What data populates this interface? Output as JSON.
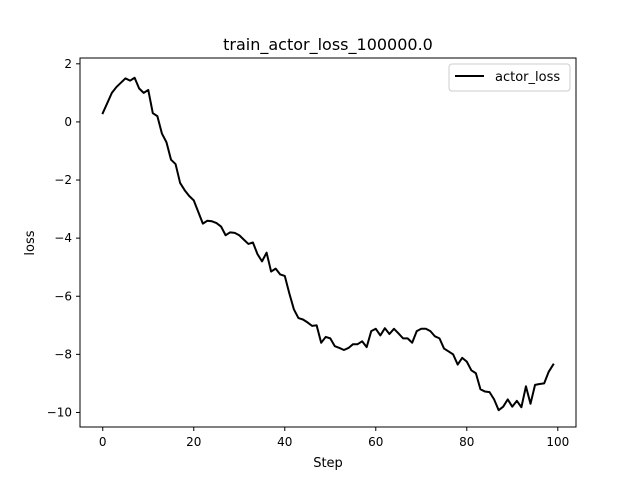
{
  "chart_data": {
    "type": "line",
    "title": "train_actor_loss_100000.0",
    "xlabel": "Step",
    "ylabel": "loss",
    "xlim": [
      -5,
      104
    ],
    "ylim": [
      -10.5,
      2.2
    ],
    "x_ticks": [
      0,
      20,
      40,
      60,
      80,
      100
    ],
    "y_ticks": [
      2,
      0,
      -2,
      -4,
      -6,
      -8,
      -10
    ],
    "grid": false,
    "legend": {
      "position": "top-right"
    },
    "series": [
      {
        "name": "actor_loss",
        "color": "#000000",
        "x": [
          0,
          1,
          2,
          3,
          4,
          5,
          6,
          7,
          8,
          9,
          10,
          11,
          12,
          13,
          14,
          15,
          16,
          17,
          18,
          19,
          20,
          21,
          22,
          23,
          24,
          25,
          26,
          27,
          28,
          29,
          30,
          31,
          32,
          33,
          34,
          35,
          36,
          37,
          38,
          39,
          40,
          41,
          42,
          43,
          44,
          45,
          46,
          47,
          48,
          49,
          50,
          51,
          52,
          53,
          54,
          55,
          56,
          57,
          58,
          59,
          60,
          61,
          62,
          63,
          64,
          65,
          66,
          67,
          68,
          69,
          70,
          71,
          72,
          73,
          74,
          75,
          76,
          77,
          78,
          79,
          80,
          81,
          82,
          83,
          84,
          85,
          86,
          87,
          88,
          89,
          90,
          91,
          92,
          93,
          94,
          95,
          96,
          97,
          98,
          99
        ],
        "values": [
          0.3,
          0.65,
          1.0,
          1.2,
          1.35,
          1.5,
          1.42,
          1.52,
          1.15,
          1.0,
          1.1,
          0.3,
          0.2,
          -0.4,
          -0.7,
          -1.3,
          -1.45,
          -2.1,
          -2.35,
          -2.55,
          -2.7,
          -3.1,
          -3.5,
          -3.4,
          -3.42,
          -3.48,
          -3.6,
          -3.9,
          -3.8,
          -3.82,
          -3.9,
          -4.05,
          -4.2,
          -4.15,
          -4.55,
          -4.8,
          -4.5,
          -5.15,
          -5.05,
          -5.25,
          -5.3,
          -5.9,
          -6.45,
          -6.75,
          -6.8,
          -6.9,
          -7.02,
          -7.0,
          -7.6,
          -7.4,
          -7.45,
          -7.72,
          -7.78,
          -7.85,
          -7.78,
          -7.65,
          -7.65,
          -7.55,
          -7.75,
          -7.2,
          -7.12,
          -7.35,
          -7.1,
          -7.3,
          -7.12,
          -7.28,
          -7.45,
          -7.45,
          -7.6,
          -7.2,
          -7.12,
          -7.12,
          -7.2,
          -7.38,
          -7.45,
          -7.8,
          -7.9,
          -8.0,
          -8.35,
          -8.12,
          -8.25,
          -8.55,
          -8.65,
          -9.2,
          -9.28,
          -9.3,
          -9.55,
          -9.92,
          -9.8,
          -9.55,
          -9.8,
          -9.6,
          -9.82,
          -9.1,
          -9.7,
          -9.05,
          -9.02,
          -9.0,
          -8.6,
          -8.35
        ]
      }
    ]
  }
}
